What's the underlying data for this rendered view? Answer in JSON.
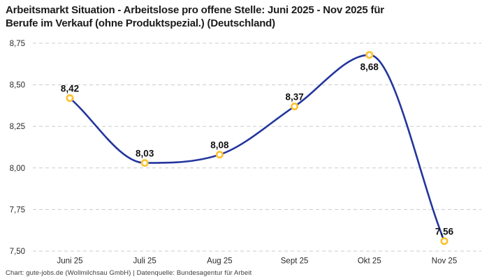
{
  "header": {
    "title_lines": [
      "Arbeitsmarkt Situation - Arbeitslose pro offene Stelle: Juni 2025 - Nov 2025 für",
      "Berufe im Verkauf (ohne Produktspezial.) (Deutschland)"
    ]
  },
  "footer": {
    "credit": "Chart: gute-jobs.de (Wollmilchsau GmbH) | Datenquelle: Bundesagentur für Arbeit"
  },
  "chart_data": {
    "type": "line",
    "title": "Arbeitsmarkt Situation - Arbeitslose pro offene Stelle: Juni 2025 - Nov 2025 für Berufe im Verkauf (ohne Produktspezial.) (Deutschland)",
    "categories": [
      "Juni 25",
      "Juli 25",
      "Aug 25",
      "Sept 25",
      "Okt 25",
      "Nov 25"
    ],
    "values": [
      8.42,
      8.03,
      8.08,
      8.37,
      8.68,
      7.56
    ],
    "value_labels": [
      "8,42",
      "8,03",
      "8,08",
      "8,37",
      "8,68",
      "7,56"
    ],
    "label_positions": [
      "above",
      "above",
      "above",
      "above",
      "below",
      "above"
    ],
    "xlabel": "",
    "ylabel": "",
    "ylim": [
      7.5,
      8.75
    ],
    "ytick_values": [
      8.75,
      8.5,
      8.25,
      8.0,
      7.75,
      7.5
    ],
    "ytick_labels": [
      "8,75",
      "8,50",
      "8,25",
      "8,00",
      "7,75",
      "7,50"
    ],
    "grid": "horizontal-dashed",
    "legend": "none",
    "curve": "smooth-monotone",
    "colors": {
      "line": "#23359e",
      "marker_ring": "#fcc22d",
      "marker_fill": "#ffffff",
      "grid": "#cbcbcb",
      "axis_text": "#2a2a2a",
      "data_label_text": "#111111"
    }
  }
}
